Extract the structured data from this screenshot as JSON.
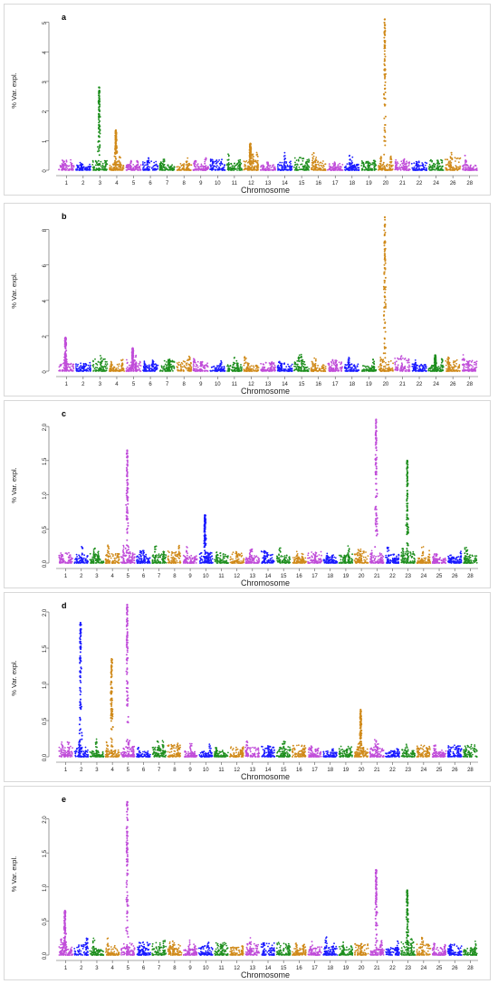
{
  "chart_data": [
    {
      "type": "scatter",
      "panel_label": "a",
      "xlabel": "Chromosome",
      "ylabel": "% Var. expl.",
      "ylim": [
        0,
        5.2
      ],
      "yticks": [
        "0",
        "1",
        "2",
        "3",
        "4",
        "5"
      ],
      "ytick_values": [
        0,
        1,
        2,
        3,
        4,
        5
      ],
      "chromosomes": [
        "1",
        "2",
        "3",
        "4",
        "5",
        "6",
        "7",
        "8",
        "9",
        "10",
        "11",
        "12",
        "13",
        "14",
        "15",
        "16",
        "17",
        "18",
        "19",
        "20",
        "21",
        "22",
        "24",
        "26",
        "28"
      ],
      "peaks": [
        {
          "chromosome": "3",
          "value": 2.8
        },
        {
          "chromosome": "4",
          "value": 1.35
        },
        {
          "chromosome": "12",
          "value": 0.9
        },
        {
          "chromosome": "20",
          "value": 5.1
        }
      ]
    },
    {
      "type": "scatter",
      "panel_label": "b",
      "xlabel": "Chromosome",
      "ylabel": "% Var. expl.",
      "ylim": [
        0,
        8.8
      ],
      "yticks": [
        "0",
        "2",
        "4",
        "6",
        "8"
      ],
      "ytick_values": [
        0,
        2,
        4,
        6,
        8
      ],
      "chromosomes": [
        "1",
        "2",
        "3",
        "4",
        "5",
        "6",
        "7",
        "8",
        "9",
        "10",
        "11",
        "12",
        "13",
        "14",
        "15",
        "16",
        "17",
        "18",
        "19",
        "20",
        "21",
        "22",
        "24",
        "26",
        "28"
      ],
      "peaks": [
        {
          "chromosome": "1",
          "value": 1.9
        },
        {
          "chromosome": "5",
          "value": 1.3
        },
        {
          "chromosome": "20",
          "value": 8.7
        },
        {
          "chromosome": "24",
          "value": 0.9
        }
      ]
    },
    {
      "type": "scatter",
      "panel_label": "c",
      "xlabel": "Chromosome",
      "ylabel": "% Var. expl.",
      "ylim": [
        0,
        2.2
      ],
      "yticks": [
        "0.0",
        "0.5",
        "1.0",
        "1.5",
        "2.0"
      ],
      "ytick_values": [
        0,
        0.5,
        1.0,
        1.5,
        2.0
      ],
      "chromosomes": [
        "1",
        "2",
        "3",
        "4",
        "5",
        "6",
        "7",
        "8",
        "9",
        "10",
        "11",
        "12",
        "13",
        "14",
        "15",
        "16",
        "17",
        "18",
        "19",
        "20",
        "21",
        "22",
        "23",
        "24",
        "25",
        "26",
        "28"
      ],
      "peaks": [
        {
          "chromosome": "5",
          "value": 1.65
        },
        {
          "chromosome": "21",
          "value": 2.1
        },
        {
          "chromosome": "23",
          "value": 1.5
        },
        {
          "chromosome": "10",
          "value": 0.7
        }
      ]
    },
    {
      "type": "scatter",
      "panel_label": "d",
      "xlabel": "Chromosome",
      "ylabel": "% Var. expl.",
      "ylim": [
        0,
        2.1
      ],
      "yticks": [
        "0.0",
        "0.5",
        "1.0",
        "1.5",
        "2.0"
      ],
      "ytick_values": [
        0,
        0.5,
        1.0,
        1.5,
        2.0
      ],
      "chromosomes": [
        "1",
        "2",
        "3",
        "4",
        "5",
        "6",
        "7",
        "8",
        "9",
        "10",
        "11",
        "12",
        "13",
        "14",
        "15",
        "16",
        "17",
        "18",
        "19",
        "20",
        "21",
        "22",
        "23",
        "24",
        "25",
        "26",
        "28"
      ],
      "peaks": [
        {
          "chromosome": "2",
          "value": 1.85
        },
        {
          "chromosome": "4",
          "value": 1.35
        },
        {
          "chromosome": "5",
          "value": 2.1
        },
        {
          "chromosome": "20",
          "value": 0.65
        }
      ]
    },
    {
      "type": "scatter",
      "panel_label": "e",
      "xlabel": "Chromosome",
      "ylabel": "% Var. expl.",
      "ylim": [
        0,
        2.3
      ],
      "yticks": [
        "0.0",
        "0.5",
        "1.0",
        "1.5",
        "2.0"
      ],
      "ytick_values": [
        0,
        0.5,
        1.0,
        1.5,
        2.0
      ],
      "chromosomes": [
        "1",
        "2",
        "3",
        "4",
        "5",
        "6",
        "7",
        "8",
        "9",
        "10",
        "11",
        "12",
        "13",
        "14",
        "15",
        "16",
        "17",
        "18",
        "19",
        "20",
        "21",
        "22",
        "23",
        "24",
        "25",
        "26",
        "28"
      ],
      "peaks": [
        {
          "chromosome": "5",
          "value": 2.25
        },
        {
          "chromosome": "21",
          "value": 1.25
        },
        {
          "chromosome": "23",
          "value": 0.95
        },
        {
          "chromosome": "1",
          "value": 0.65
        }
      ]
    }
  ],
  "colors": {
    "purple": "#c04dd9",
    "blue": "#1a1aff",
    "green": "#1f8f1f",
    "orange": "#d08a1a"
  },
  "color_cycle": [
    "purple",
    "blue",
    "green",
    "orange"
  ]
}
